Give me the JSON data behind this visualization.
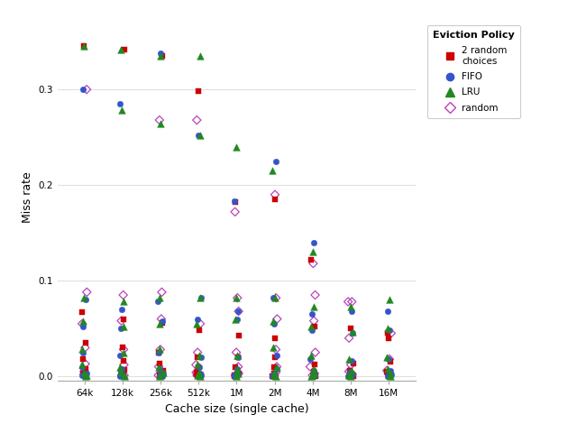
{
  "xlabel": "Cache size (single cache)",
  "ylabel": "Miss rate",
  "legend_title": "Eviction Policy",
  "x_labels": [
    "64k",
    "128k",
    "256k",
    "512k",
    "1M",
    "2M",
    "4M",
    "8M",
    "16M"
  ],
  "x_positions": [
    1,
    2,
    3,
    4,
    5,
    6,
    7,
    8,
    9
  ],
  "policies": {
    "2 random choices": {
      "color": "#cc0000",
      "marker": "s",
      "filled": true,
      "points": [
        [
          1,
          0.345
        ],
        [
          2,
          0.342
        ],
        [
          3,
          0.335
        ],
        [
          4,
          0.298
        ],
        [
          5,
          0.182
        ],
        [
          6,
          0.185
        ],
        [
          7,
          0.122
        ],
        [
          1,
          0.067
        ],
        [
          2,
          0.06
        ],
        [
          3,
          0.056
        ],
        [
          4,
          0.048
        ],
        [
          5,
          0.043
        ],
        [
          6,
          0.04
        ],
        [
          7,
          0.052
        ],
        [
          8,
          0.05
        ],
        [
          9,
          0.045
        ],
        [
          1,
          0.035
        ],
        [
          2,
          0.03
        ],
        [
          3,
          0.025
        ],
        [
          4,
          0.02
        ],
        [
          5,
          0.02
        ],
        [
          6,
          0.02
        ],
        [
          7,
          0.012
        ],
        [
          8,
          0.013
        ],
        [
          9,
          0.04
        ],
        [
          1,
          0.018
        ],
        [
          2,
          0.016
        ],
        [
          3,
          0.013
        ],
        [
          4,
          0.01
        ],
        [
          5,
          0.01
        ],
        [
          6,
          0.01
        ],
        [
          7,
          0.005
        ],
        [
          8,
          0.006
        ],
        [
          9,
          0.015
        ],
        [
          1,
          0.008
        ],
        [
          2,
          0.007
        ],
        [
          3,
          0.006
        ],
        [
          4,
          0.004
        ],
        [
          5,
          0.003
        ],
        [
          6,
          0.003
        ],
        [
          7,
          0.002
        ],
        [
          8,
          0.002
        ],
        [
          9,
          0.005
        ],
        [
          1,
          0.003
        ],
        [
          2,
          0.003
        ],
        [
          3,
          0.002
        ],
        [
          4,
          0.002
        ],
        [
          5,
          0.001
        ],
        [
          6,
          0.001
        ],
        [
          7,
          0.001
        ],
        [
          8,
          0.001
        ],
        [
          9,
          0.002
        ],
        [
          1,
          0.001
        ],
        [
          2,
          0.001
        ],
        [
          3,
          0.001
        ],
        [
          4,
          0.001
        ],
        [
          5,
          0.0005
        ],
        [
          6,
          0.0005
        ],
        [
          7,
          0.0003
        ],
        [
          8,
          0.0003
        ],
        [
          9,
          0.001
        ],
        [
          1,
          0.0002
        ],
        [
          2,
          0.0002
        ],
        [
          3,
          0.0002
        ],
        [
          4,
          0.0002
        ],
        [
          5,
          0.0001
        ],
        [
          6,
          0.0001
        ],
        [
          7,
          0.0001
        ],
        [
          8,
          0.0001
        ],
        [
          9,
          0.0003
        ]
      ]
    },
    "FIFO": {
      "color": "#3355cc",
      "marker": "o",
      "filled": true,
      "points": [
        [
          1,
          0.3
        ],
        [
          2,
          0.285
        ],
        [
          3,
          0.338
        ],
        [
          4,
          0.252
        ],
        [
          5,
          0.183
        ],
        [
          6,
          0.225
        ],
        [
          7,
          0.14
        ],
        [
          1,
          0.08
        ],
        [
          2,
          0.07
        ],
        [
          3,
          0.078
        ],
        [
          4,
          0.082
        ],
        [
          5,
          0.068
        ],
        [
          6,
          0.082
        ],
        [
          7,
          0.065
        ],
        [
          8,
          0.068
        ],
        [
          9,
          0.068
        ],
        [
          1,
          0.052
        ],
        [
          2,
          0.05
        ],
        [
          3,
          0.058
        ],
        [
          4,
          0.06
        ],
        [
          5,
          0.06
        ],
        [
          6,
          0.055
        ],
        [
          7,
          0.048
        ],
        [
          8,
          0.045
        ],
        [
          9,
          0.048
        ],
        [
          1,
          0.025
        ],
        [
          2,
          0.022
        ],
        [
          3,
          0.025
        ],
        [
          4,
          0.02
        ],
        [
          5,
          0.02
        ],
        [
          6,
          0.022
        ],
        [
          7,
          0.018
        ],
        [
          8,
          0.016
        ],
        [
          9,
          0.018
        ],
        [
          1,
          0.01
        ],
        [
          2,
          0.008
        ],
        [
          3,
          0.008
        ],
        [
          4,
          0.01
        ],
        [
          5,
          0.008
        ],
        [
          6,
          0.008
        ],
        [
          7,
          0.006
        ],
        [
          8,
          0.005
        ],
        [
          9,
          0.006
        ],
        [
          1,
          0.003
        ],
        [
          2,
          0.003
        ],
        [
          3,
          0.003
        ],
        [
          4,
          0.003
        ],
        [
          5,
          0.002
        ],
        [
          6,
          0.003
        ],
        [
          7,
          0.002
        ],
        [
          8,
          0.002
        ],
        [
          9,
          0.002
        ],
        [
          1,
          0.001
        ],
        [
          2,
          0.001
        ],
        [
          3,
          0.001
        ],
        [
          4,
          0.001
        ],
        [
          5,
          0.001
        ],
        [
          6,
          0.001
        ],
        [
          7,
          0.0005
        ],
        [
          8,
          0.0005
        ],
        [
          9,
          0.001
        ],
        [
          1,
          0.0002
        ],
        [
          2,
          0.0002
        ],
        [
          3,
          0.0002
        ],
        [
          4,
          0.0002
        ],
        [
          5,
          0.0001
        ],
        [
          6,
          0.0001
        ],
        [
          7,
          0.0001
        ],
        [
          8,
          0.0001
        ],
        [
          9,
          0.0003
        ]
      ]
    },
    "LRU": {
      "color": "#228822",
      "marker": "^",
      "filled": true,
      "points": [
        [
          1,
          0.345
        ],
        [
          2,
          0.342
        ],
        [
          3,
          0.335
        ],
        [
          4,
          0.335
        ],
        [
          2,
          0.278
        ],
        [
          3,
          0.264
        ],
        [
          4,
          0.252
        ],
        [
          5,
          0.24
        ],
        [
          6,
          0.215
        ],
        [
          7,
          0.13
        ],
        [
          1,
          0.082
        ],
        [
          2,
          0.078
        ],
        [
          3,
          0.082
        ],
        [
          4,
          0.082
        ],
        [
          5,
          0.082
        ],
        [
          6,
          0.082
        ],
        [
          7,
          0.073
        ],
        [
          8,
          0.073
        ],
        [
          9,
          0.08
        ],
        [
          1,
          0.058
        ],
        [
          2,
          0.052
        ],
        [
          3,
          0.055
        ],
        [
          4,
          0.055
        ],
        [
          5,
          0.06
        ],
        [
          6,
          0.058
        ],
        [
          7,
          0.052
        ],
        [
          8,
          0.046
        ],
        [
          9,
          0.05
        ],
        [
          1,
          0.028
        ],
        [
          2,
          0.025
        ],
        [
          3,
          0.028
        ],
        [
          4,
          0.022
        ],
        [
          5,
          0.022
        ],
        [
          6,
          0.03
        ],
        [
          7,
          0.022
        ],
        [
          8,
          0.018
        ],
        [
          9,
          0.02
        ],
        [
          1,
          0.012
        ],
        [
          2,
          0.01
        ],
        [
          3,
          0.01
        ],
        [
          4,
          0.012
        ],
        [
          5,
          0.008
        ],
        [
          6,
          0.01
        ],
        [
          7,
          0.008
        ],
        [
          8,
          0.006
        ],
        [
          9,
          0.008
        ],
        [
          1,
          0.004
        ],
        [
          2,
          0.004
        ],
        [
          3,
          0.004
        ],
        [
          4,
          0.004
        ],
        [
          5,
          0.003
        ],
        [
          6,
          0.004
        ],
        [
          7,
          0.003
        ],
        [
          8,
          0.002
        ],
        [
          9,
          0.003
        ],
        [
          1,
          0.001
        ],
        [
          2,
          0.001
        ],
        [
          3,
          0.001
        ],
        [
          4,
          0.001
        ],
        [
          5,
          0.001
        ],
        [
          6,
          0.001
        ],
        [
          7,
          0.001
        ],
        [
          8,
          0.001
        ],
        [
          9,
          0.001
        ],
        [
          1,
          0.0002
        ],
        [
          2,
          0.0002
        ],
        [
          3,
          0.0002
        ],
        [
          4,
          0.0002
        ],
        [
          5,
          0.0001
        ],
        [
          6,
          0.0001
        ],
        [
          7,
          0.0001
        ],
        [
          8,
          0.0001
        ],
        [
          9,
          0.0003
        ]
      ]
    },
    "random": {
      "color": "#bb44bb",
      "marker": "D",
      "filled": false,
      "points": [
        [
          1,
          0.3
        ],
        [
          3,
          0.268
        ],
        [
          4,
          0.268
        ],
        [
          5,
          0.172
        ],
        [
          6,
          0.19
        ],
        [
          7,
          0.118
        ],
        [
          1,
          0.088
        ],
        [
          2,
          0.085
        ],
        [
          3,
          0.088
        ],
        [
          5,
          0.082
        ],
        [
          6,
          0.082
        ],
        [
          7,
          0.085
        ],
        [
          8,
          0.078
        ],
        [
          1,
          0.055
        ],
        [
          2,
          0.058
        ],
        [
          3,
          0.06
        ],
        [
          4,
          0.055
        ],
        [
          5,
          0.068
        ],
        [
          6,
          0.06
        ],
        [
          7,
          0.058
        ],
        [
          1,
          0.03
        ],
        [
          2,
          0.028
        ],
        [
          3,
          0.028
        ],
        [
          4,
          0.025
        ],
        [
          5,
          0.025
        ],
        [
          6,
          0.028
        ],
        [
          7,
          0.025
        ],
        [
          1,
          0.013
        ],
        [
          2,
          0.012
        ],
        [
          3,
          0.01
        ],
        [
          4,
          0.012
        ],
        [
          5,
          0.01
        ],
        [
          6,
          0.01
        ],
        [
          7,
          0.01
        ],
        [
          1,
          0.005
        ],
        [
          2,
          0.005
        ],
        [
          3,
          0.004
        ],
        [
          4,
          0.004
        ],
        [
          5,
          0.003
        ],
        [
          6,
          0.004
        ],
        [
          7,
          0.003
        ],
        [
          1,
          0.002
        ],
        [
          2,
          0.001
        ],
        [
          3,
          0.001
        ],
        [
          4,
          0.001
        ],
        [
          5,
          0.001
        ],
        [
          6,
          0.001
        ],
        [
          7,
          0.001
        ],
        [
          8,
          0.078
        ],
        [
          8,
          0.04
        ],
        [
          8,
          0.012
        ],
        [
          8,
          0.005
        ],
        [
          8,
          0.002
        ],
        [
          9,
          0.045
        ],
        [
          9,
          0.018
        ],
        [
          9,
          0.006
        ],
        [
          9,
          0.002
        ]
      ]
    }
  },
  "background_color": "#ffffff",
  "grid_color": "#e0e0e0",
  "ylim": [
    -0.005,
    0.38
  ],
  "yticks": [
    0.0,
    0.1,
    0.2,
    0.3
  ],
  "scatter_size": 22,
  "jitter_amount": 0.07
}
